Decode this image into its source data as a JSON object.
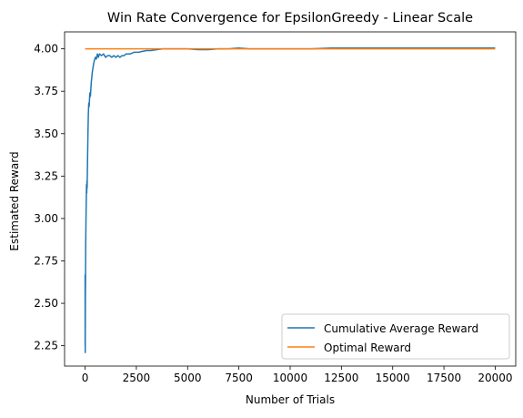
{
  "chart_data": {
    "type": "line",
    "title": "Win Rate Convergence for EpsilonGreedy - Linear Scale",
    "xlabel": "Number of Trials",
    "ylabel": "Estimated Reward",
    "xlim": [
      -1000,
      21000
    ],
    "ylim": [
      2.13,
      4.1
    ],
    "x_ticks": [
      0,
      2500,
      5000,
      7500,
      10000,
      12500,
      15000,
      17500,
      20000
    ],
    "x_tick_labels": [
      "0",
      "2500",
      "5000",
      "7500",
      "10000",
      "12500",
      "15000",
      "17500",
      "20000"
    ],
    "y_ticks": [
      2.25,
      2.5,
      2.75,
      3.0,
      3.25,
      3.5,
      3.75,
      4.0
    ],
    "y_tick_labels": [
      "2.25",
      "2.50",
      "2.75",
      "3.00",
      "3.25",
      "3.50",
      "3.75",
      "4.00"
    ],
    "grid": false,
    "legend_position": "lower-right",
    "series": [
      {
        "name": "Cumulative Average Reward",
        "color": "#1f77b4",
        "x": [
          1,
          3,
          5,
          8,
          10,
          15,
          20,
          25,
          30,
          40,
          50,
          60,
          70,
          80,
          90,
          100,
          120,
          140,
          160,
          180,
          200,
          230,
          260,
          300,
          350,
          400,
          450,
          500,
          550,
          600,
          650,
          700,
          800,
          900,
          1000,
          1100,
          1200,
          1300,
          1400,
          1500,
          1600,
          1700,
          1800,
          1900,
          2000,
          2200,
          2400,
          2600,
          2800,
          3000,
          3200,
          3500,
          3800,
          4000,
          4500,
          5000,
          5500,
          6000,
          6500,
          7000,
          7500,
          8000,
          9000,
          10000,
          11000,
          12000,
          13000,
          14000,
          15000,
          16000,
          17000,
          18000,
          19000,
          20000
        ],
        "y": [
          2.67,
          2.25,
          2.38,
          2.21,
          2.35,
          2.55,
          2.62,
          2.71,
          2.85,
          2.95,
          3.05,
          3.12,
          3.2,
          3.15,
          3.22,
          3.18,
          3.35,
          3.5,
          3.62,
          3.68,
          3.66,
          3.74,
          3.72,
          3.8,
          3.86,
          3.9,
          3.93,
          3.95,
          3.94,
          3.97,
          3.95,
          3.97,
          3.96,
          3.97,
          3.95,
          3.96,
          3.96,
          3.95,
          3.96,
          3.95,
          3.96,
          3.95,
          3.96,
          3.96,
          3.97,
          3.97,
          3.98,
          3.98,
          3.985,
          3.99,
          3.99,
          3.995,
          4.0,
          4.0,
          4.0,
          4.0,
          3.995,
          3.995,
          4.0,
          4.0,
          4.005,
          4.0,
          4.0,
          4.0,
          4.0,
          4.005,
          4.005,
          4.005,
          4.005,
          4.005,
          4.005,
          4.005,
          4.005,
          4.005
        ]
      },
      {
        "name": "Optimal Reward",
        "color": "#ff7f0e",
        "x": [
          0,
          20000
        ],
        "y": [
          4.0,
          4.0
        ]
      }
    ]
  }
}
